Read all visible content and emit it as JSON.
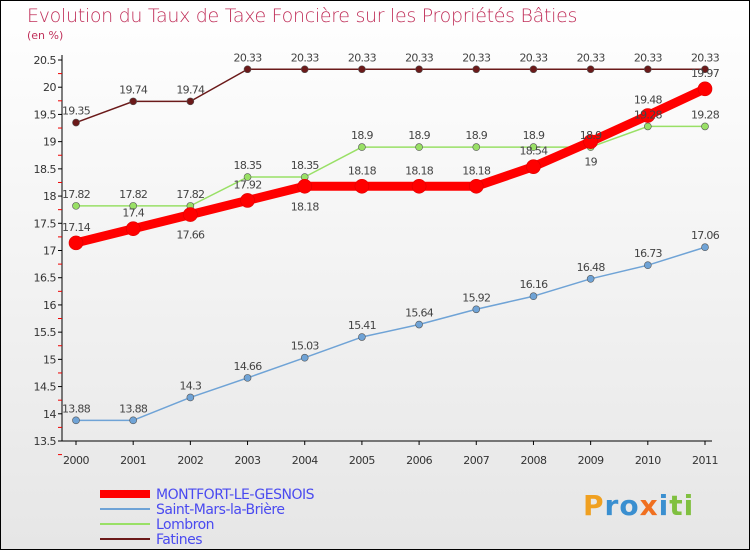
{
  "chart_data": {
    "type": "line",
    "title": "Evolution du Taux de Taxe Foncière sur les Propriétés Bâties",
    "ylabel": "(en %)",
    "xlabel": "",
    "x": [
      "2000",
      "2001",
      "2002",
      "2003",
      "2004",
      "2005",
      "2006",
      "2007",
      "2008",
      "2009",
      "2010",
      "2011"
    ],
    "ylim": [
      13.5,
      20.5
    ],
    "yticks": [
      "13.5",
      "14",
      "14.5",
      "15",
      "15.5",
      "16",
      "16.5",
      "17",
      "17.5",
      "18",
      "18.5",
      "19",
      "19.5",
      "20",
      "20.5"
    ],
    "legend_position": "bottom-left",
    "series": [
      {
        "name": "Fatines",
        "color": "#6b1a1a",
        "values": [
          19.35,
          19.74,
          19.74,
          20.33,
          20.33,
          20.33,
          20.33,
          20.33,
          20.33,
          20.33,
          20.33,
          20.33
        ],
        "labels": [
          "19.35",
          "19.74",
          "19.74",
          "20.33",
          "20.33",
          "20.33",
          "20.33",
          "20.33",
          "20.33",
          "20.33",
          "20.33",
          "20.33"
        ]
      },
      {
        "name": "Lombron",
        "color": "#99e066",
        "values": [
          17.82,
          17.82,
          17.82,
          18.35,
          18.35,
          18.9,
          18.9,
          18.9,
          18.9,
          18.9,
          19.28,
          19.28
        ],
        "labels": [
          "17.82",
          "17.82",
          "17.82",
          "18.35",
          "18.35",
          "18.9",
          "18.9",
          "18.9",
          "18.9",
          "18.9",
          "19.28",
          "19.28"
        ]
      },
      {
        "name": "Saint-Mars-la-Brière",
        "color": "#6fa3d6",
        "values": [
          13.88,
          13.88,
          14.3,
          14.66,
          15.03,
          15.41,
          15.64,
          15.92,
          16.16,
          16.48,
          16.73,
          17.06
        ],
        "labels": [
          "13.88",
          "13.88",
          "14.3",
          "14.66",
          "15.03",
          "15.41",
          "15.64",
          "15.92",
          "16.16",
          "16.48",
          "16.73",
          "17.06"
        ]
      },
      {
        "name": "MONTFORT-LE-GESNOIS",
        "color": "#ff0000",
        "values": [
          17.14,
          17.4,
          17.66,
          17.92,
          18.18,
          18.18,
          18.18,
          18.18,
          18.54,
          19,
          19.48,
          19.97
        ],
        "labels": [
          "17.14",
          "17.4",
          "17.66",
          "17.92",
          "18.18",
          "18.18",
          "18.18",
          "18.18",
          "18.54",
          "19",
          "19.48",
          "19.97"
        ]
      }
    ]
  },
  "legend_order": [
    3,
    2,
    1,
    0
  ],
  "logo": "Proxiti"
}
